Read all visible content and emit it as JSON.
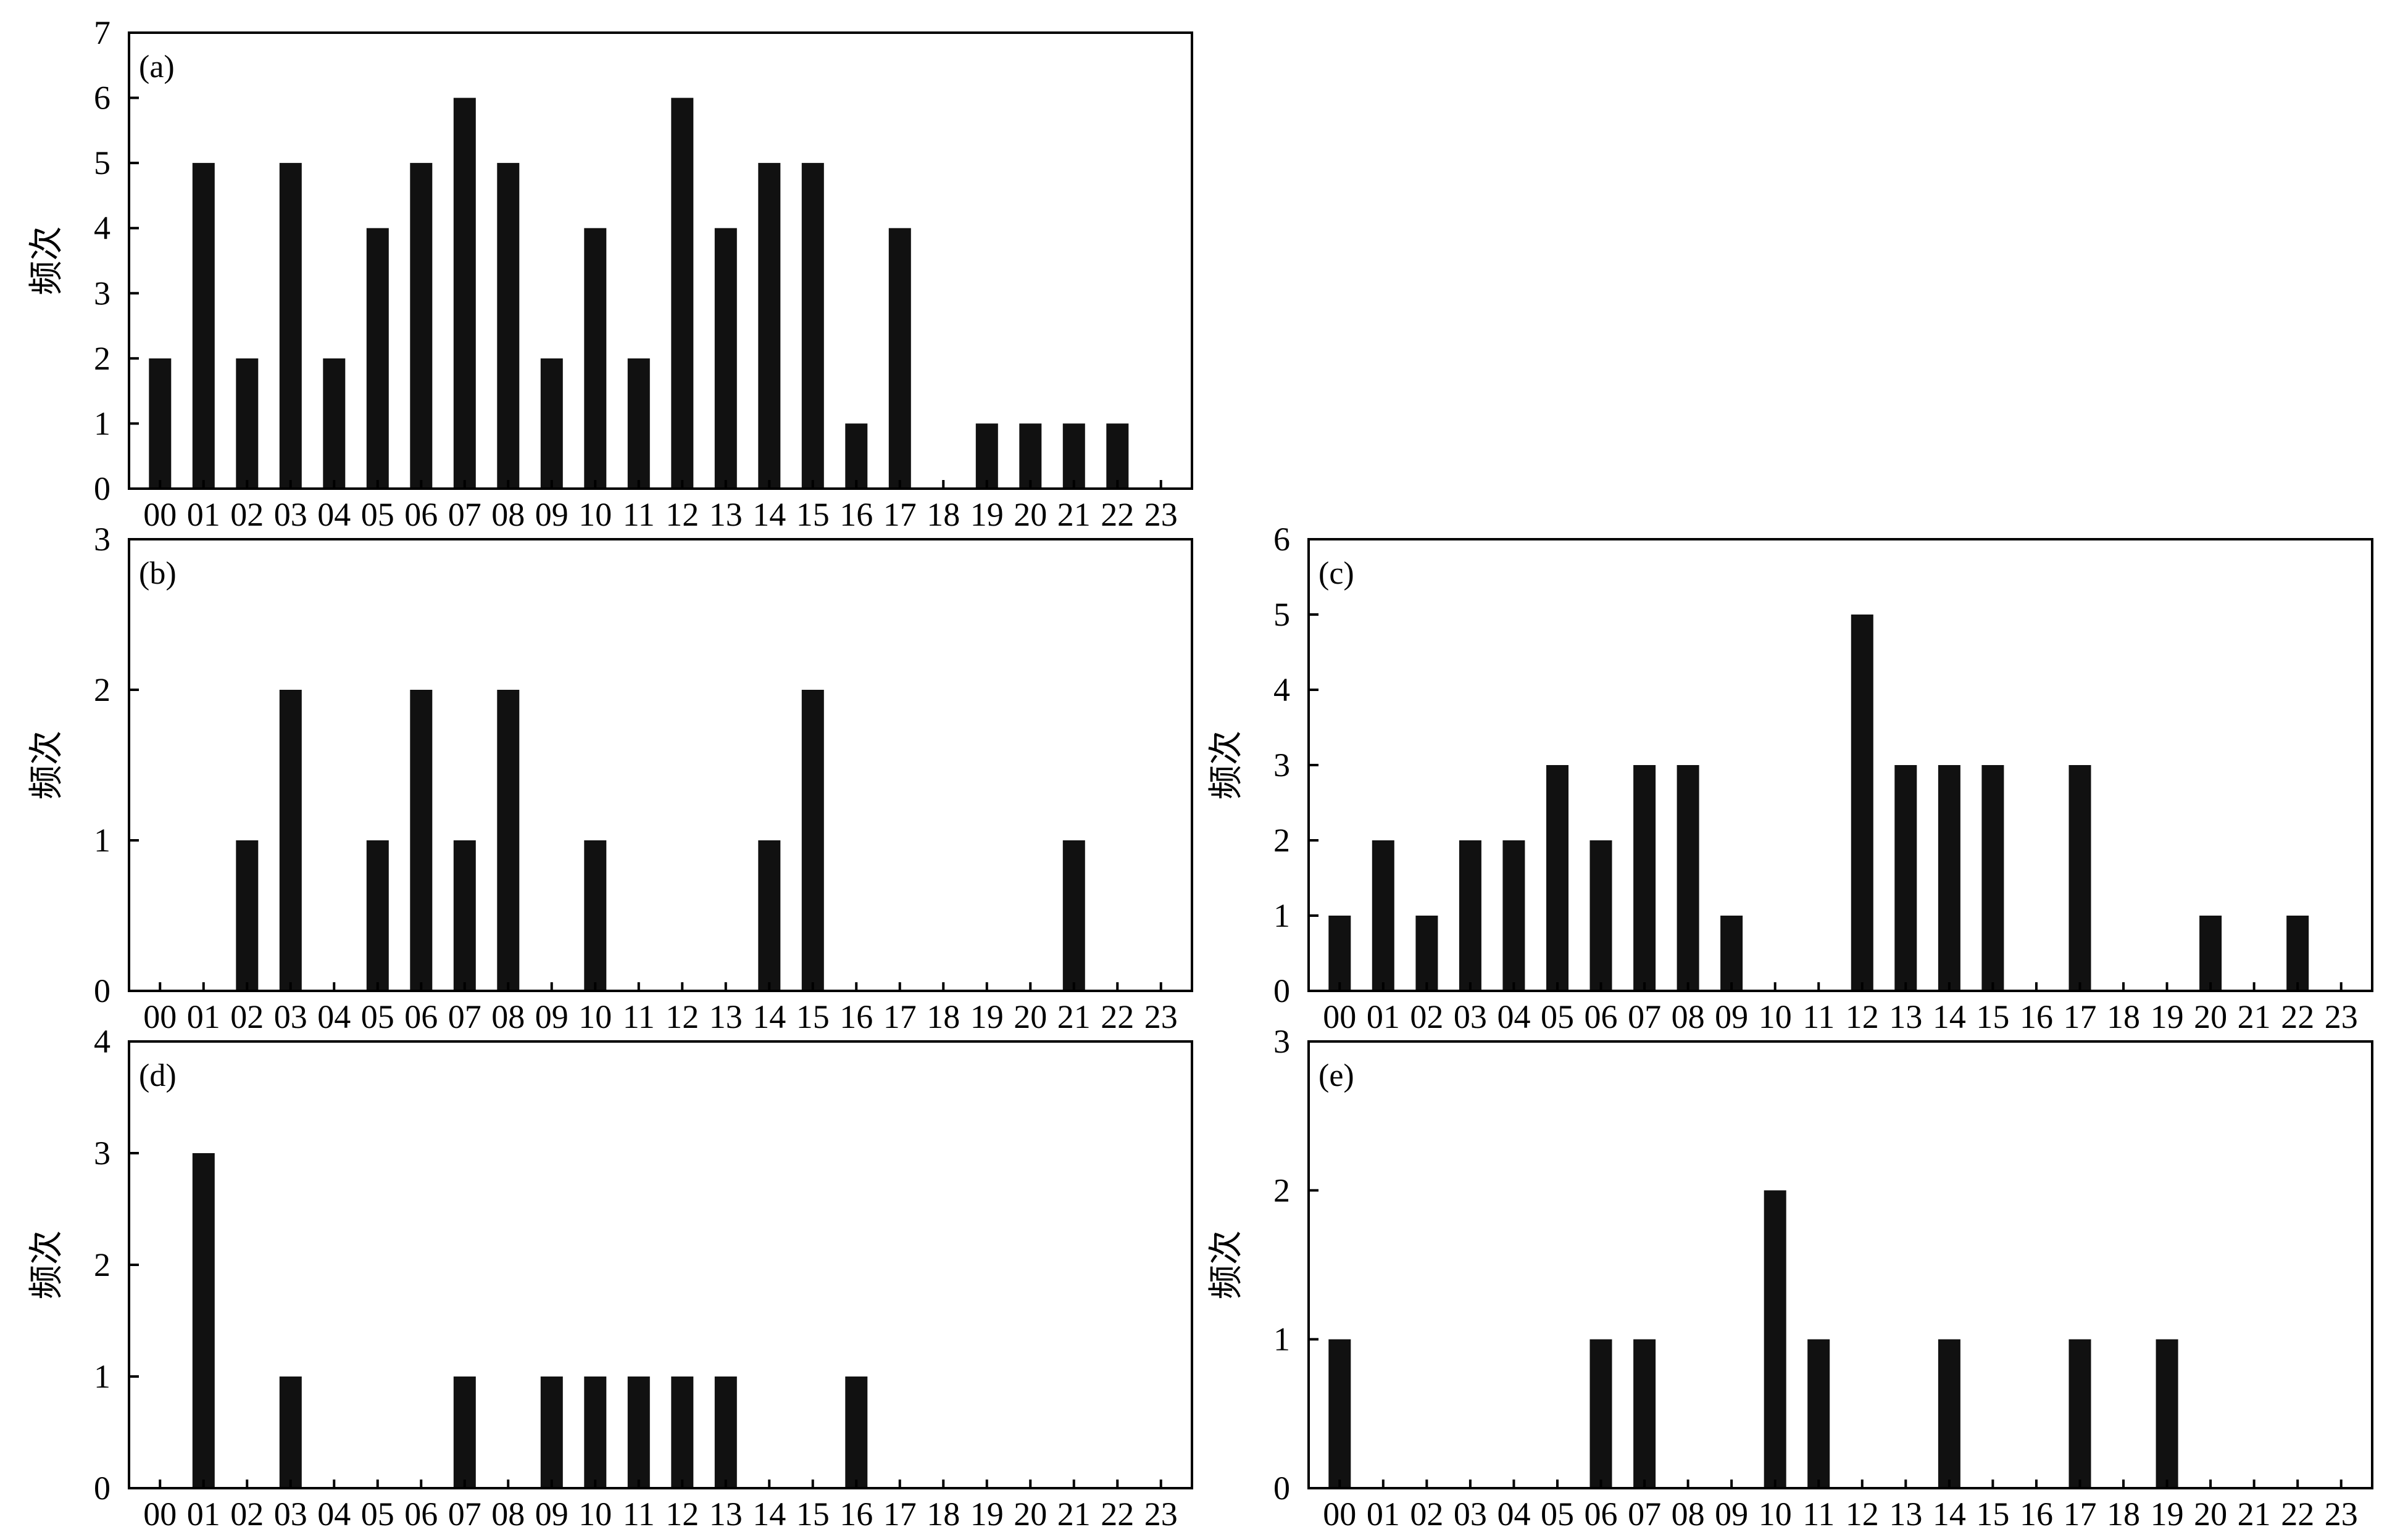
{
  "figure": {
    "style": {
      "bar_color": "#111111",
      "axis_color": "#000000",
      "background": "#ffffff"
    }
  },
  "chart_data": [
    {
      "id": "a",
      "type": "bar",
      "panel_label": "(a)",
      "xlabel": "",
      "ylabel": "频次",
      "ylim": [
        0,
        7
      ],
      "yticks": [
        0,
        1,
        2,
        3,
        4,
        5,
        6,
        7
      ],
      "categories": [
        "00",
        "01",
        "02",
        "03",
        "04",
        "05",
        "06",
        "07",
        "08",
        "09",
        "10",
        "11",
        "12",
        "13",
        "14",
        "15",
        "16",
        "17",
        "18",
        "19",
        "20",
        "21",
        "22",
        "23"
      ],
      "values": [
        2,
        5,
        2,
        5,
        2,
        4,
        5,
        6,
        5,
        2,
        4,
        2,
        6,
        4,
        5,
        5,
        1,
        4,
        0,
        1,
        1,
        1,
        1,
        0
      ]
    },
    {
      "id": "b",
      "type": "bar",
      "panel_label": "(b)",
      "xlabel": "",
      "ylabel": "频次",
      "ylim": [
        0,
        3
      ],
      "yticks": [
        0,
        1,
        2,
        3
      ],
      "categories": [
        "00",
        "01",
        "02",
        "03",
        "04",
        "05",
        "06",
        "07",
        "08",
        "09",
        "10",
        "11",
        "12",
        "13",
        "14",
        "15",
        "16",
        "17",
        "18",
        "19",
        "20",
        "21",
        "22",
        "23"
      ],
      "values": [
        0,
        0,
        1,
        2,
        0,
        1,
        2,
        1,
        2,
        0,
        1,
        0,
        0,
        0,
        1,
        2,
        0,
        0,
        0,
        0,
        0,
        1,
        0,
        0
      ]
    },
    {
      "id": "c",
      "type": "bar",
      "panel_label": "(c)",
      "xlabel": "",
      "ylabel": "频次",
      "ylim": [
        0,
        6
      ],
      "yticks": [
        0,
        1,
        2,
        3,
        4,
        5,
        6
      ],
      "categories": [
        "00",
        "01",
        "02",
        "03",
        "04",
        "05",
        "06",
        "07",
        "08",
        "09",
        "10",
        "11",
        "12",
        "13",
        "14",
        "15",
        "16",
        "17",
        "18",
        "19",
        "20",
        "21",
        "22",
        "23"
      ],
      "values": [
        1,
        2,
        1,
        2,
        2,
        3,
        2,
        3,
        3,
        1,
        0,
        0,
        5,
        3,
        3,
        3,
        0,
        3,
        0,
        0,
        1,
        0,
        1,
        0
      ]
    },
    {
      "id": "d",
      "type": "bar",
      "panel_label": "(d)",
      "xlabel": "",
      "ylabel": "频次",
      "ylim": [
        0,
        4
      ],
      "yticks": [
        0,
        1,
        2,
        3,
        4
      ],
      "categories": [
        "00",
        "01",
        "02",
        "03",
        "04",
        "05",
        "06",
        "07",
        "08",
        "09",
        "10",
        "11",
        "12",
        "13",
        "14",
        "15",
        "16",
        "17",
        "18",
        "19",
        "20",
        "21",
        "22",
        "23"
      ],
      "values": [
        0,
        3,
        0,
        1,
        0,
        0,
        0,
        1,
        0,
        1,
        1,
        1,
        1,
        1,
        0,
        0,
        1,
        0,
        0,
        0,
        0,
        0,
        0,
        0
      ]
    },
    {
      "id": "e",
      "type": "bar",
      "panel_label": "(e)",
      "xlabel": "",
      "ylabel": "频次",
      "ylim": [
        0,
        3
      ],
      "yticks": [
        0,
        1,
        2,
        3
      ],
      "categories": [
        "00",
        "01",
        "02",
        "03",
        "04",
        "05",
        "06",
        "07",
        "08",
        "09",
        "10",
        "11",
        "12",
        "13",
        "14",
        "15",
        "16",
        "17",
        "18",
        "19",
        "20",
        "21",
        "22",
        "23"
      ],
      "values": [
        1,
        0,
        0,
        0,
        0,
        0,
        1,
        1,
        0,
        0,
        2,
        1,
        0,
        0,
        1,
        0,
        0,
        1,
        0,
        1,
        0,
        0,
        0,
        0
      ]
    }
  ]
}
